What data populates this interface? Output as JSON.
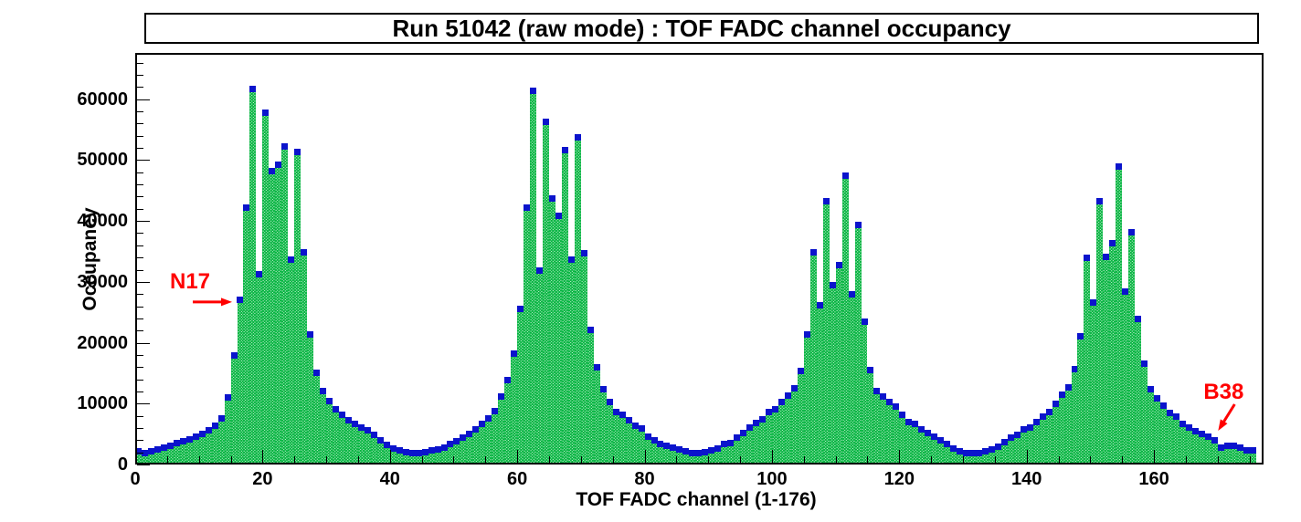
{
  "chart_data": {
    "type": "bar",
    "title": "Run 51042 (raw mode) : TOF FADC channel occupancy",
    "xlabel": "TOF FADC channel (1-176)",
    "ylabel": "Occupancy",
    "x_ticks_major": [
      0,
      20,
      40,
      60,
      80,
      100,
      120,
      140,
      160
    ],
    "x_minor_step": 5,
    "y_ticks_major": [
      0,
      10000,
      20000,
      30000,
      40000,
      50000,
      60000
    ],
    "y_minor_step": 2000,
    "xlim": [
      0,
      177.2
    ],
    "ylim": [
      0,
      67600
    ],
    "grid": false,
    "legend": false,
    "first_channel": 1,
    "n_channels": 176,
    "values": [
      2100,
      1900,
      2150,
      2500,
      2750,
      3050,
      3450,
      3800,
      4100,
      4550,
      5000,
      5600,
      6300,
      7600,
      11000,
      17900,
      27000,
      42200,
      61700,
      31200,
      57800,
      48200,
      49300,
      52300,
      33600,
      51300,
      34800,
      21300,
      15100,
      12100,
      10400,
      9000,
      8100,
      7200,
      6700,
      6000,
      5600,
      4900,
      4000,
      3200,
      2600,
      2300,
      2050,
      1900,
      1900,
      2000,
      2250,
      2400,
      2800,
      3300,
      3800,
      4400,
      5000,
      5700,
      6600,
      7600,
      8800,
      11200,
      13900,
      18200,
      25500,
      42200,
      61400,
      31900,
      56300,
      43700,
      40900,
      51600,
      33600,
      53800,
      34700,
      22100,
      16000,
      12400,
      10300,
      8600,
      8100,
      7300,
      6400,
      5900,
      4500,
      3900,
      3400,
      3100,
      2800,
      2500,
      2150,
      1900,
      1800,
      2000,
      2300,
      2650,
      3400,
      3500,
      4400,
      5150,
      6000,
      6800,
      7400,
      8650,
      9000,
      10300,
      11300,
      12500,
      15400,
      21400,
      34800,
      26100,
      43200,
      29500,
      32800,
      47400,
      27900,
      39400,
      23400,
      15500,
      12000,
      11200,
      10200,
      9500,
      8100,
      7000,
      6600,
      5700,
      5150,
      4500,
      3900,
      3300,
      2550,
      2150,
      1900,
      1800,
      1900,
      2150,
      2400,
      2900,
      3650,
      4400,
      4800,
      5700,
      6000,
      7000,
      7900,
      8650,
      9900,
      11400,
      12700,
      15700,
      21100,
      34000,
      26600,
      43300,
      34100,
      36300,
      49000,
      28400,
      38100,
      23900,
      16600,
      12300,
      10900,
      9600,
      8400,
      7800,
      6600,
      6000,
      5400,
      5000,
      4500,
      3900,
      2800,
      3000,
      3100,
      2800,
      2300,
      2300
    ],
    "annotations": [
      {
        "label": "N17",
        "channel": 17,
        "arrow": "right"
      },
      {
        "label": "B38",
        "channel": 170,
        "arrow": "down-left"
      }
    ],
    "colors": {
      "bar_fill": "#00b33c",
      "marker": "#0b14cc",
      "annotation": "#ff0000",
      "axis": "#000000",
      "background": "#ffffff"
    }
  }
}
